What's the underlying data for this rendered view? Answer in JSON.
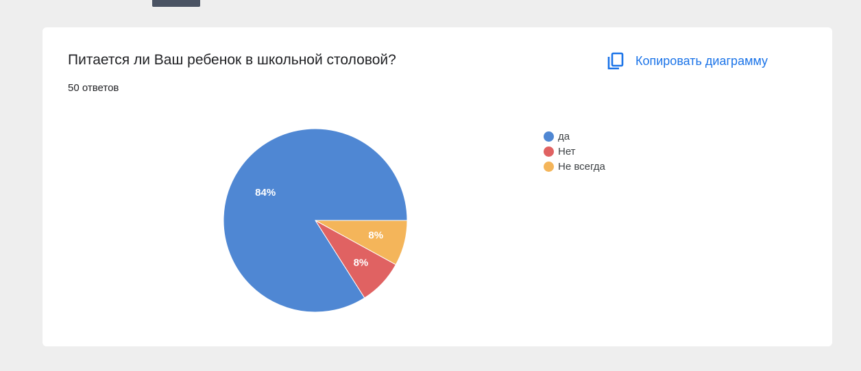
{
  "card": {
    "title": "Питается ли Ваш ребенок в школьной столовой?",
    "responses": "50 ответов",
    "copy_button_label": "Копировать диаграмму",
    "copy_icon": "copy-icon"
  },
  "colors": {
    "accent": "#1a73e8",
    "series": [
      "#4f87d3",
      "#e06262",
      "#f4b55a"
    ]
  },
  "chart_data": {
    "type": "pie",
    "title": "Питается ли Ваш ребенок в школьной столовой?",
    "categories": [
      "да",
      "Нет",
      "Не всегда"
    ],
    "values": [
      84,
      8,
      8
    ],
    "labels": [
      "84%",
      "8%",
      "8%"
    ],
    "legend_position": "right"
  }
}
